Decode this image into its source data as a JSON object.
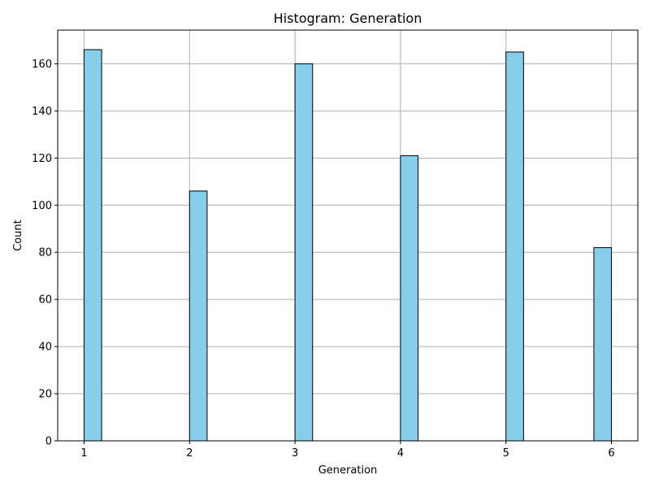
{
  "chart_data": {
    "type": "bar",
    "title": "Histogram: Generation",
    "xlabel": "Generation",
    "ylabel": "Count",
    "bin_width": 0.1667,
    "bins": [
      {
        "start": 1.0,
        "end": 1.1667,
        "count": 166
      },
      {
        "start": 2.0,
        "end": 2.1667,
        "count": 106
      },
      {
        "start": 3.0,
        "end": 3.1667,
        "count": 160
      },
      {
        "start": 4.0,
        "end": 4.1667,
        "count": 121
      },
      {
        "start": 5.0,
        "end": 5.1667,
        "count": 165
      },
      {
        "start": 5.8333,
        "end": 6.0,
        "count": 82
      }
    ],
    "xlim": [
      0.75,
      6.25
    ],
    "ylim": [
      0,
      174.3
    ],
    "x_ticks": [
      1,
      2,
      3,
      4,
      5,
      6
    ],
    "x_tick_labels": [
      "1",
      "2",
      "3",
      "4",
      "5",
      "6"
    ],
    "y_ticks": [
      0,
      20,
      40,
      60,
      80,
      100,
      120,
      140,
      160
    ],
    "y_tick_labels": [
      "0",
      "20",
      "40",
      "60",
      "80",
      "100",
      "120",
      "140",
      "160"
    ],
    "grid": true,
    "bar_color": "#87ceeb",
    "edge_color": "#000000",
    "legend": "none"
  }
}
